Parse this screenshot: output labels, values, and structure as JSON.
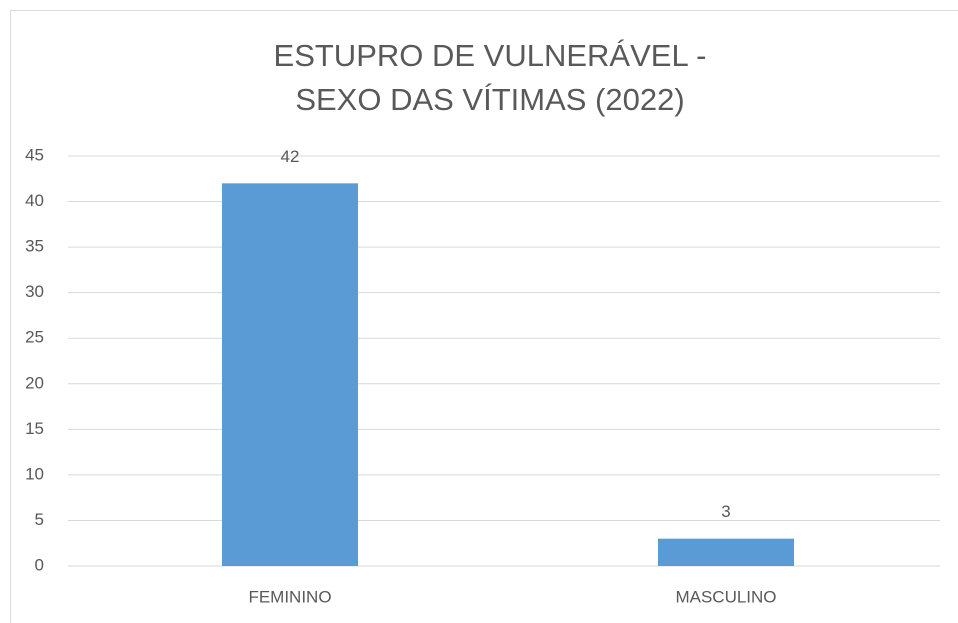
{
  "chart_data": {
    "type": "bar",
    "title": [
      "ESTUPRO DE VULNERÁVEL -",
      "SEXO DAS VÍTIMAS (2022)"
    ],
    "categories": [
      "FEMININO",
      "MASCULINO"
    ],
    "values": [
      42,
      3
    ],
    "color": "#5b9bd5",
    "ylim": [
      0,
      45
    ],
    "yticks": [
      0,
      5,
      10,
      15,
      20,
      25,
      30,
      35,
      40,
      45
    ],
    "grid": true
  }
}
